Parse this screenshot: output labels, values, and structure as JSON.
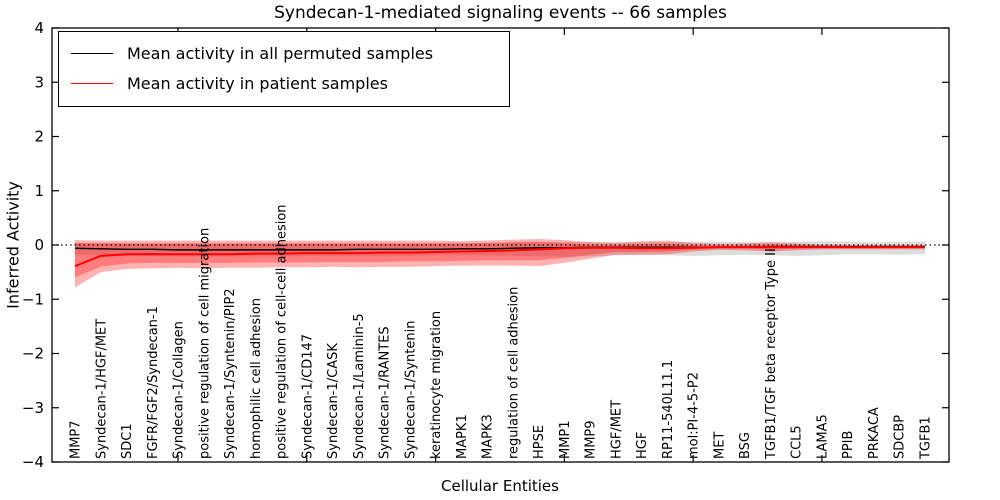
{
  "title": "Syndecan-1-mediated signaling events -- 66 samples",
  "legend": {
    "entries": [
      {
        "label": "Mean activity in all permuted samples",
        "color": "#000000"
      },
      {
        "label": "Mean activity in patient samples",
        "color": "#ff0000"
      }
    ],
    "position": "upper left"
  },
  "chart_data": {
    "type": "line",
    "title": "Syndecan-1-mediated signaling events -- 66 samples",
    "xlabel": "Cellular Entities",
    "ylabel": "Inferred Activity",
    "ylim": [
      -4,
      4
    ],
    "grid": false,
    "legend_position": "upper left",
    "yticks": [
      {
        "value": 4,
        "label": "4"
      },
      {
        "value": 3,
        "label": "3"
      },
      {
        "value": 2,
        "label": "2"
      },
      {
        "value": 1,
        "label": "1"
      },
      {
        "value": 0,
        "label": "0"
      },
      {
        "value": -1,
        "label": "−1"
      },
      {
        "value": -2,
        "label": "−2"
      },
      {
        "value": -3,
        "label": "−3"
      },
      {
        "value": -4,
        "label": "−4"
      }
    ],
    "x_major_tick_indices": [
      4,
      9,
      14,
      19,
      24,
      29
    ],
    "zero_reference_line": 0,
    "categories": [
      "MMP7",
      "Syndecan-1/HGF/MET",
      "SDC1",
      "FGFR/FGF2/Syndecan-1",
      "Syndecan-1/Collagen",
      "positive regulation of cell migration",
      "Syndecan-1/Syntenin/PIP2",
      "homophilic cell adhesion",
      "positive regulation of cell-cell adhesion",
      "Syndecan-1/CD147",
      "Syndecan-1/CASK",
      "Syndecan-1/Laminin-5",
      "Syndecan-1/RANTES",
      "Syndecan-1/Syntenin",
      "keratinocyte migration",
      "MAPK1",
      "MAPK3",
      "regulation of cell adhesion",
      "HPSE",
      "MMP1",
      "MMP9",
      "HGF/MET",
      "HGF",
      "RP11-540L11.1",
      "mol:PI-4-5-P2",
      "MET",
      "BSG",
      "TGFB1/TGF beta receptor Type II",
      "CCL5",
      "LAMA5",
      "PPIB",
      "PRKACA",
      "SDCBP",
      "TGFB1"
    ],
    "series": [
      {
        "id": "permuted-mean-line",
        "name": "Mean activity in all permuted samples",
        "color": "#000000",
        "width": 1.4,
        "values": [
          -0.06,
          -0.07,
          -0.08,
          -0.08,
          -0.09,
          -0.09,
          -0.09,
          -0.09,
          -0.09,
          -0.09,
          -0.09,
          -0.08,
          -0.08,
          -0.08,
          -0.08,
          -0.07,
          -0.07,
          -0.06,
          -0.05,
          -0.05,
          -0.04,
          -0.04,
          -0.04,
          -0.04,
          -0.04,
          -0.04,
          -0.04,
          -0.03,
          -0.03,
          -0.03,
          -0.03,
          -0.03,
          -0.03,
          -0.03
        ]
      },
      {
        "id": "patient-mean-line",
        "name": "Mean activity in patient samples",
        "color": "#ff0000",
        "width": 2,
        "values": [
          -0.39,
          -0.2,
          -0.17,
          -0.17,
          -0.17,
          -0.17,
          -0.17,
          -0.16,
          -0.16,
          -0.15,
          -0.15,
          -0.15,
          -0.14,
          -0.14,
          -0.13,
          -0.12,
          -0.11,
          -0.1,
          -0.08,
          -0.06,
          -0.05,
          -0.05,
          -0.06,
          -0.06,
          -0.05,
          -0.04,
          -0.04,
          -0.04,
          -0.04,
          -0.04,
          -0.04,
          -0.04,
          -0.04,
          -0.04
        ]
      }
    ],
    "bands": [
      {
        "id": "permuted-samples-band",
        "color": "#787878",
        "opacity": 0.25,
        "upper": [
          0.04,
          0.04,
          0.03,
          0.03,
          0.03,
          0.03,
          0.03,
          0.03,
          0.03,
          0.03,
          0.03,
          0.03,
          0.03,
          0.03,
          0.04,
          0.04,
          0.04,
          0.05,
          0.05,
          0.05,
          0.06,
          0.05,
          0.05,
          0.05,
          0.06,
          0.06,
          0.05,
          0.05,
          0.06,
          0.07,
          0.06,
          0.05,
          0.06,
          0.06
        ],
        "lower": [
          -0.18,
          -0.19,
          -0.2,
          -0.2,
          -0.21,
          -0.21,
          -0.21,
          -0.21,
          -0.21,
          -0.2,
          -0.2,
          -0.2,
          -0.2,
          -0.2,
          -0.19,
          -0.19,
          -0.19,
          -0.2,
          -0.21,
          -0.22,
          -0.21,
          -0.19,
          -0.18,
          -0.19,
          -0.2,
          -0.19,
          -0.18,
          -0.19,
          -0.2,
          -0.19,
          -0.17,
          -0.17,
          -0.18,
          -0.17
        ]
      },
      {
        "id": "patient-samples-band-outer",
        "color": "#ff0000",
        "opacity": 0.3,
        "upper": [
          0.09,
          0.08,
          0.08,
          0.08,
          0.08,
          0.08,
          0.08,
          0.08,
          0.08,
          0.08,
          0.08,
          0.08,
          0.08,
          0.08,
          0.08,
          0.07,
          0.08,
          0.1,
          0.11,
          0.09,
          0.05,
          0.04,
          0.07,
          0.08,
          0.04,
          0.02,
          0.03,
          0.05,
          0.03,
          0.01,
          0.0,
          0.0,
          0.0,
          0.0
        ],
        "lower": [
          -0.78,
          -0.5,
          -0.44,
          -0.43,
          -0.42,
          -0.43,
          -0.42,
          -0.42,
          -0.41,
          -0.41,
          -0.4,
          -0.41,
          -0.4,
          -0.4,
          -0.39,
          -0.38,
          -0.38,
          -0.38,
          -0.39,
          -0.33,
          -0.25,
          -0.18,
          -0.18,
          -0.17,
          -0.12,
          -0.09,
          -0.1,
          -0.12,
          -0.1,
          -0.08,
          -0.08,
          -0.08,
          -0.08,
          -0.08
        ]
      },
      {
        "id": "patient-samples-band-inner",
        "color": "#ff0000",
        "opacity": 0.3,
        "upper": [
          0.04,
          0.03,
          0.03,
          0.03,
          0.03,
          0.03,
          0.03,
          0.03,
          0.03,
          0.03,
          0.03,
          0.03,
          0.03,
          0.03,
          0.03,
          0.03,
          0.04,
          0.05,
          0.06,
          0.04,
          0.01,
          0.0,
          0.02,
          0.03,
          0.0,
          -0.01,
          -0.01,
          0.01,
          -0.01,
          -0.02,
          -0.02,
          -0.02,
          -0.02,
          -0.02
        ],
        "lower": [
          -0.6,
          -0.4,
          -0.34,
          -0.33,
          -0.33,
          -0.33,
          -0.33,
          -0.32,
          -0.32,
          -0.32,
          -0.31,
          -0.31,
          -0.31,
          -0.3,
          -0.3,
          -0.29,
          -0.28,
          -0.28,
          -0.28,
          -0.24,
          -0.18,
          -0.13,
          -0.13,
          -0.12,
          -0.09,
          -0.07,
          -0.07,
          -0.08,
          -0.07,
          -0.06,
          -0.06,
          -0.06,
          -0.06,
          -0.06
        ]
      }
    ]
  }
}
